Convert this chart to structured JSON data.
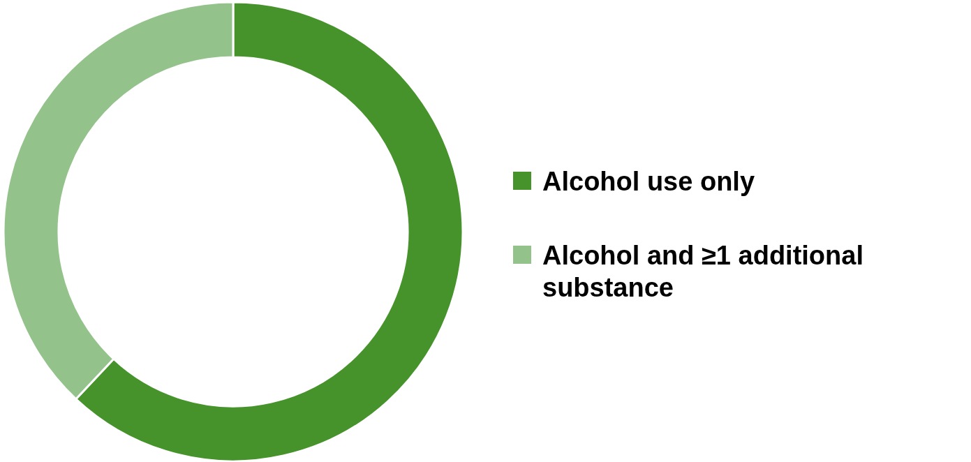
{
  "chart_data": {
    "type": "donut",
    "categories": [
      "Alcohol use only",
      "Alcohol and ≥1 additional substance"
    ],
    "values": [
      62,
      38
    ],
    "colors": [
      "#45932a",
      "#93c38a"
    ],
    "legend": "right"
  }
}
